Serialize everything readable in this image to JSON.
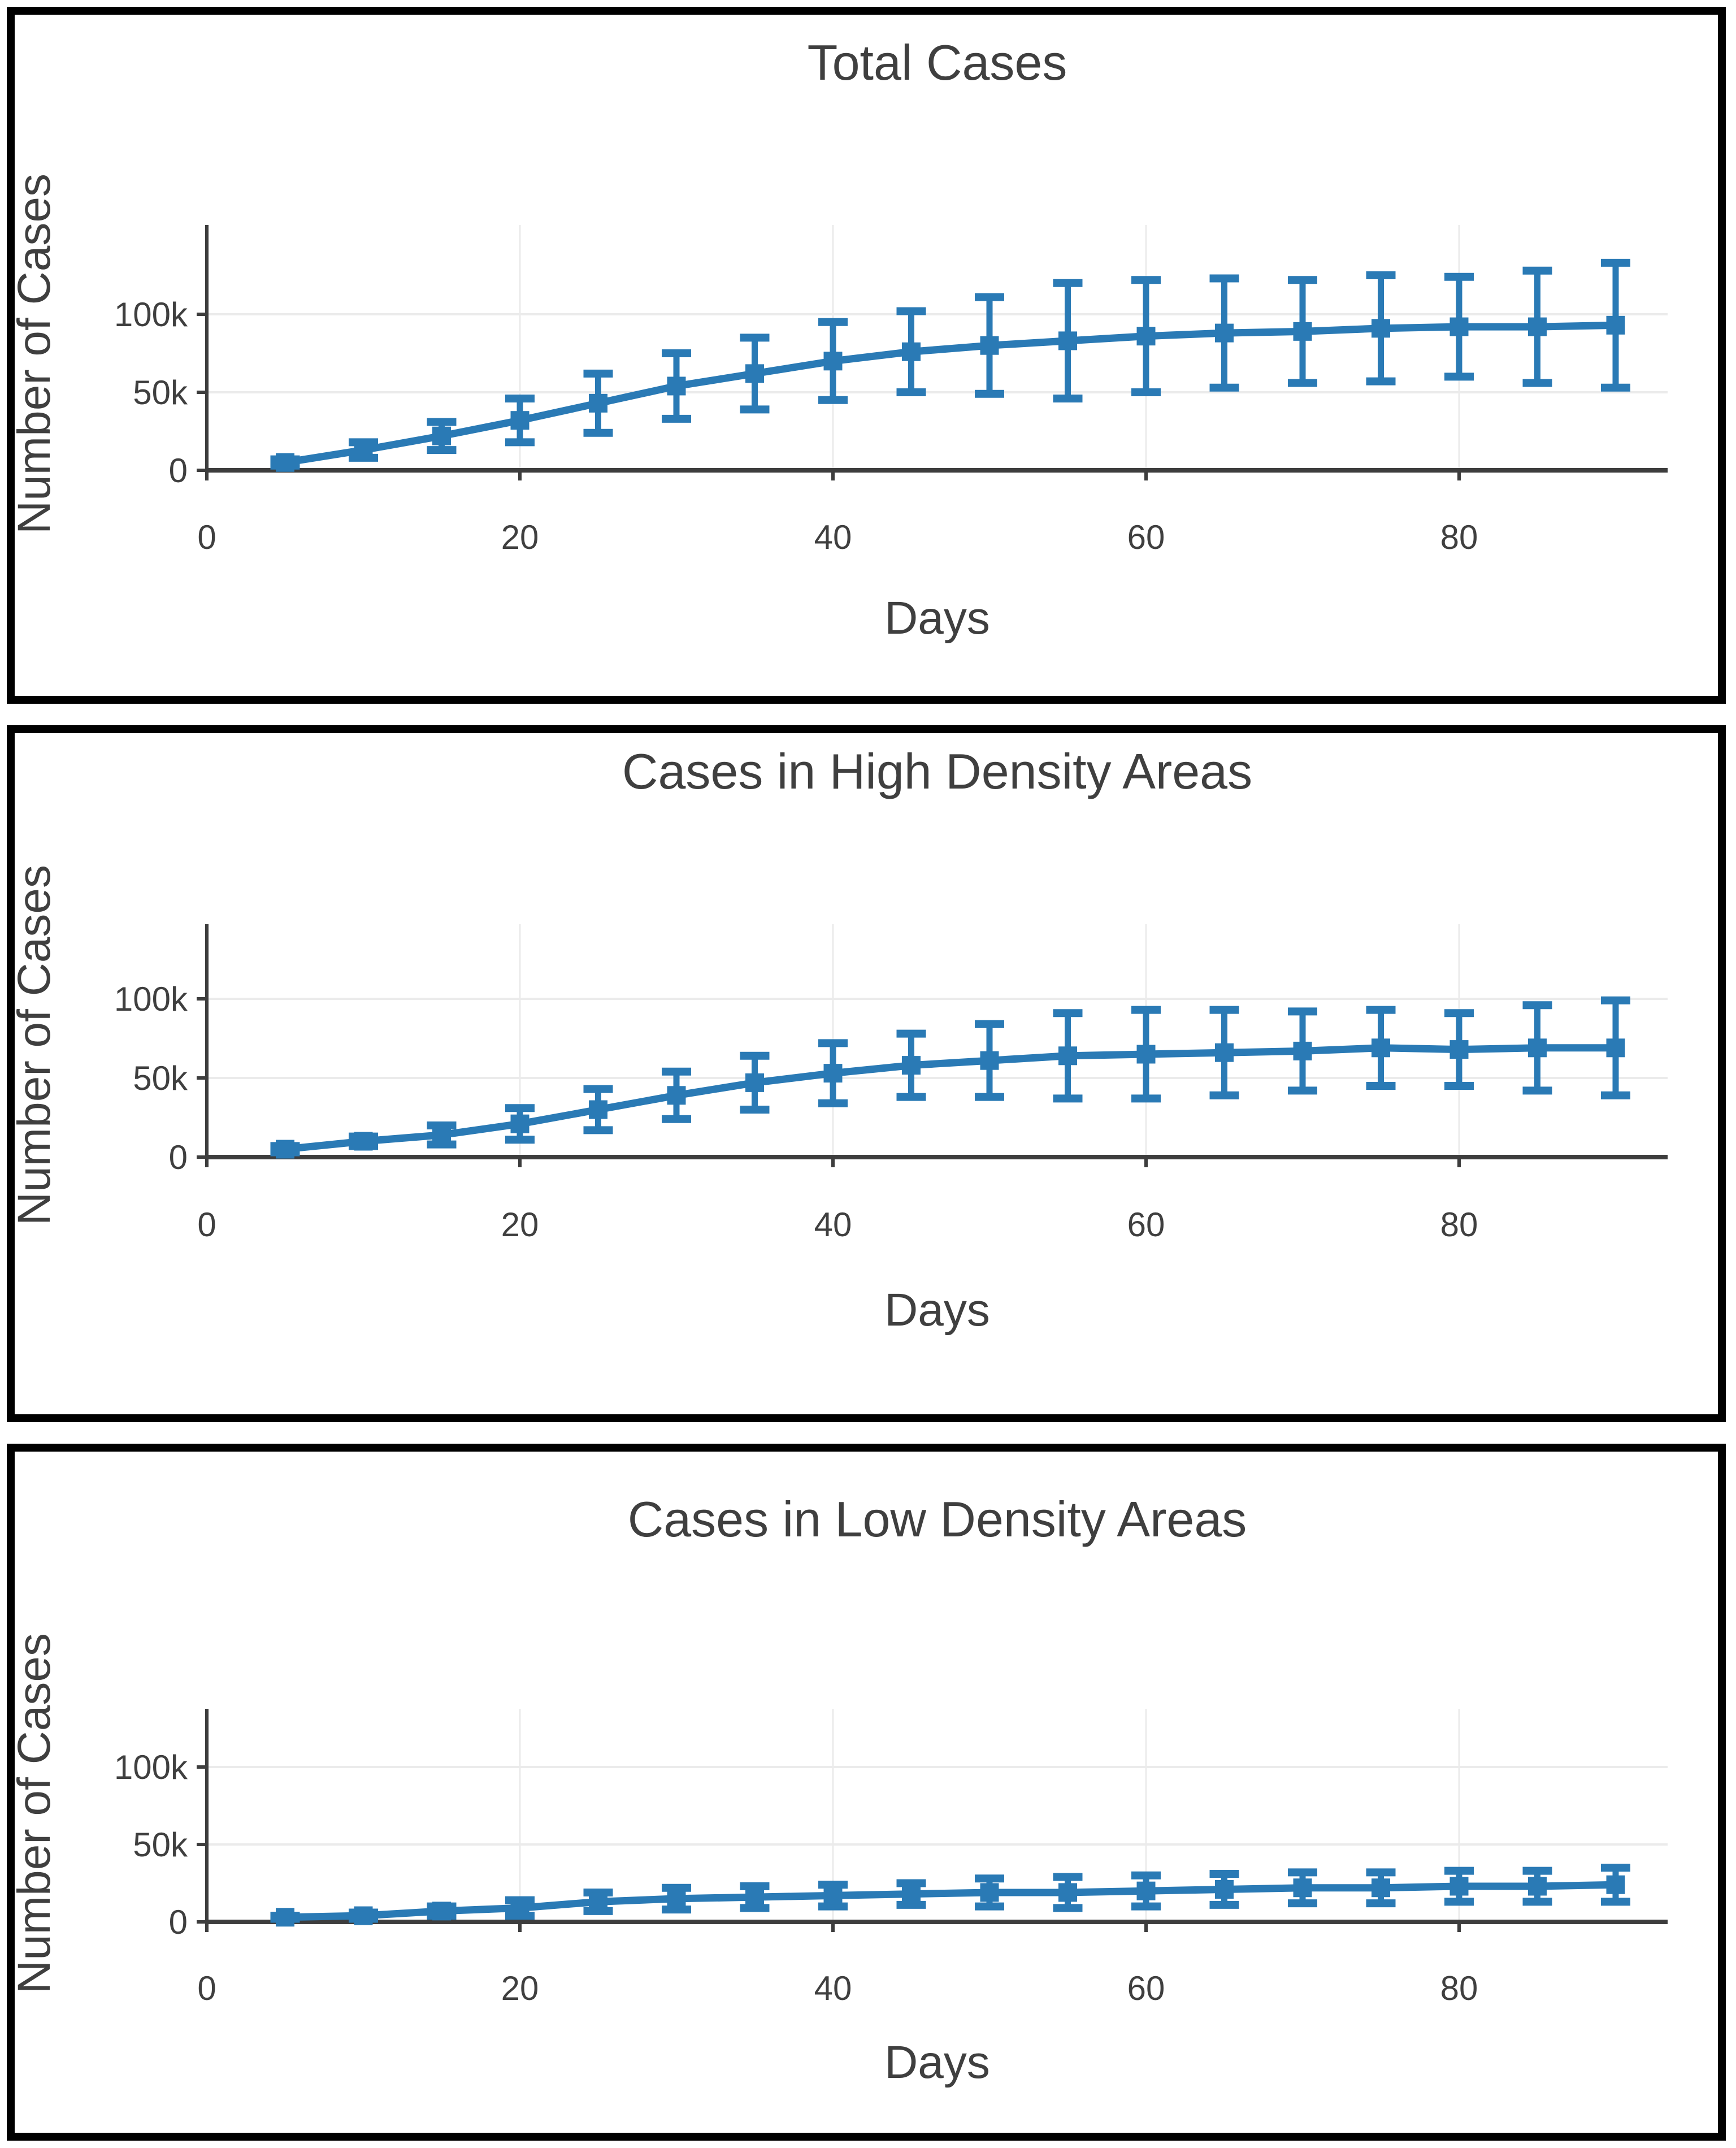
{
  "page": {
    "background": "#ffffff",
    "panel_border_color": "#000000",
    "accent_color": "#2a7ab5",
    "axis_color": "#3d3d3d",
    "grid_color": "#ebebeb",
    "text_color": "#3f3f3f"
  },
  "chart_data": [
    {
      "type": "line",
      "title": "Total Cases",
      "xlabel": "Days",
      "ylabel": "Number of Cases",
      "legend": "none",
      "grid": true,
      "marker": "square",
      "xlim": [
        0,
        94
      ],
      "ylim": [
        0,
        145000
      ],
      "x_tick_values": [
        0,
        20,
        40,
        60,
        80
      ],
      "x_tick_labels": [
        "0",
        "20",
        "40",
        "60",
        "80"
      ],
      "y_tick_values": [
        0,
        50000,
        100000
      ],
      "y_tick_labels": [
        "0",
        "50k",
        "100k"
      ],
      "x": [
        5,
        10,
        15,
        20,
        25,
        30,
        35,
        40,
        45,
        50,
        55,
        60,
        65,
        70,
        75,
        80,
        85,
        90
      ],
      "y": [
        5000,
        13000,
        22000,
        32000,
        43000,
        54000,
        62000,
        70000,
        76000,
        80000,
        83000,
        86000,
        88000,
        89000,
        91000,
        92000,
        92000,
        93000
      ],
      "error_y": [
        2000,
        5000,
        9000,
        14000,
        19000,
        21000,
        23000,
        25000,
        26000,
        31000,
        37000,
        36000,
        35000,
        33000,
        34000,
        32000,
        36000,
        40000
      ]
    },
    {
      "type": "line",
      "title": "Cases in High Density Areas",
      "xlabel": "Days",
      "ylabel": "Number of Cases",
      "legend": "none",
      "grid": true,
      "marker": "square",
      "xlim": [
        0,
        94
      ],
      "ylim": [
        0,
        135000
      ],
      "x_tick_values": [
        0,
        20,
        40,
        60,
        80
      ],
      "x_tick_labels": [
        "0",
        "20",
        "40",
        "60",
        "80"
      ],
      "y_tick_values": [
        0,
        50000,
        100000
      ],
      "y_tick_labels": [
        "0",
        "50k",
        "100k"
      ],
      "x": [
        5,
        10,
        15,
        20,
        25,
        30,
        35,
        40,
        45,
        50,
        55,
        60,
        65,
        70,
        75,
        80,
        85,
        90
      ],
      "y": [
        5000,
        10000,
        14000,
        21000,
        30000,
        39000,
        47000,
        53000,
        58000,
        61000,
        64000,
        65000,
        66000,
        67000,
        69000,
        68000,
        69000,
        69000
      ],
      "error_y": [
        2000,
        3000,
        6000,
        10000,
        13000,
        15000,
        17000,
        19000,
        20000,
        23000,
        27000,
        28000,
        27000,
        25000,
        24000,
        23000,
        27000,
        30000
      ]
    },
    {
      "type": "line",
      "title": "Cases in Low Density Areas",
      "xlabel": "Days",
      "ylabel": "Number of Cases",
      "legend": "none",
      "grid": true,
      "marker": "square",
      "xlim": [
        0,
        94
      ],
      "ylim": [
        0,
        135000
      ],
      "x_tick_values": [
        0,
        20,
        40,
        60,
        80
      ],
      "x_tick_labels": [
        "0",
        "20",
        "40",
        "60",
        "80"
      ],
      "y_tick_values": [
        0,
        50000,
        100000
      ],
      "y_tick_labels": [
        "0",
        "50k",
        "100k"
      ],
      "x": [
        5,
        10,
        15,
        20,
        25,
        30,
        35,
        40,
        45,
        50,
        55,
        60,
        65,
        70,
        75,
        80,
        85,
        90
      ],
      "y": [
        3000,
        4000,
        7000,
        9000,
        13000,
        15000,
        16000,
        17000,
        18000,
        19000,
        19000,
        20000,
        21000,
        22000,
        22000,
        23000,
        23000,
        24000
      ],
      "error_y": [
        1000,
        2000,
        3000,
        5000,
        6000,
        7000,
        7000,
        7000,
        7000,
        9000,
        10000,
        10000,
        10000,
        10000,
        10000,
        10000,
        10000,
        11000
      ]
    }
  ]
}
